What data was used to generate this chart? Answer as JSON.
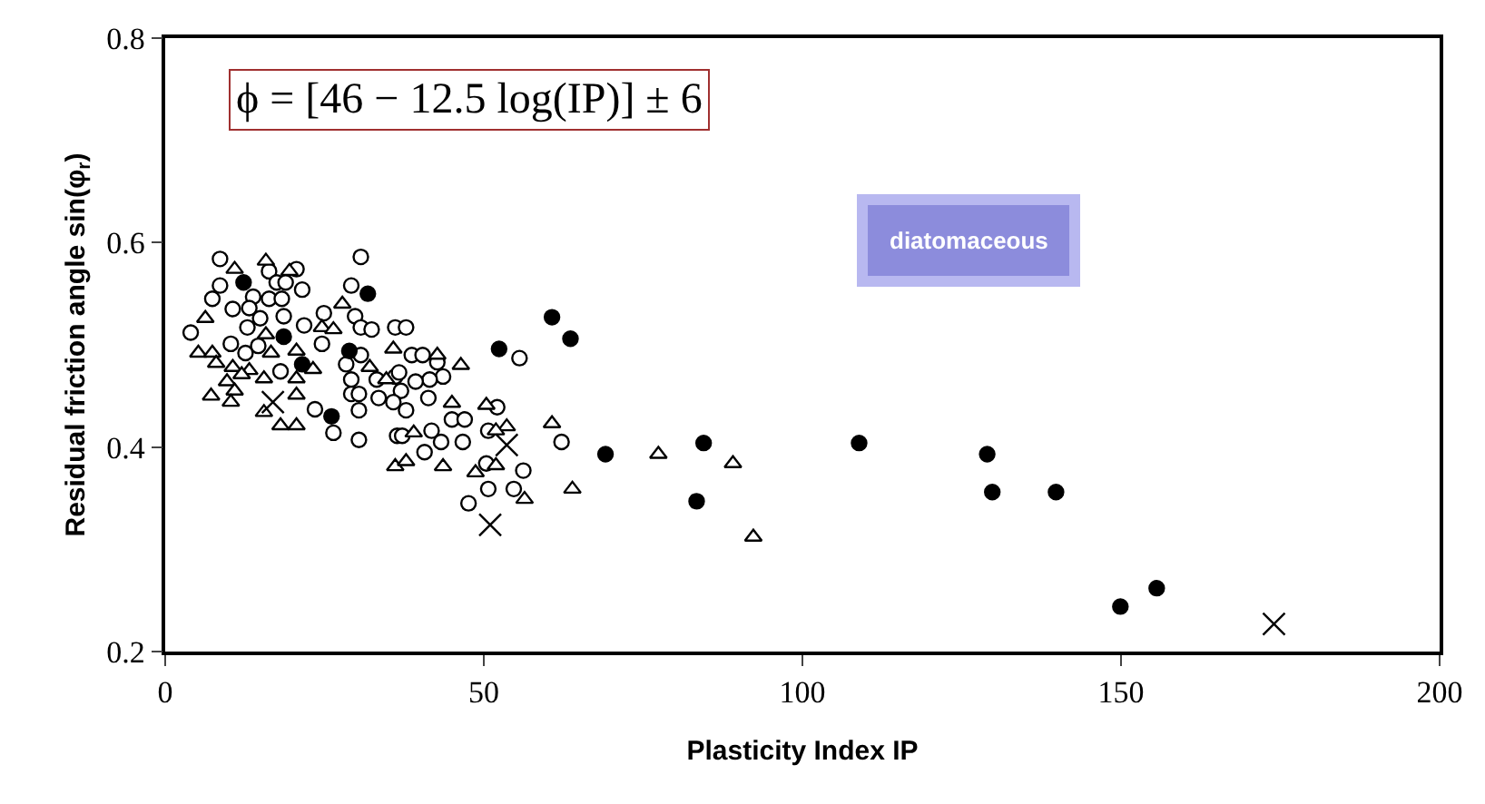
{
  "chart_data": {
    "type": "scatter",
    "xlabel": "Plasticity Index IP",
    "ylabel": "Residual friction angle sin(φ$_{r}$)",
    "annotations": [
      "ϕ = [46 − 12.5 log(IP)] ± 6",
      "diatomaceous"
    ],
    "xlim": [
      0,
      200
    ],
    "xticks": [
      0,
      50,
      100,
      150,
      200
    ],
    "ylim": [
      0.2,
      0.8
    ],
    "yticks": [
      0.2,
      0.4,
      0.6,
      0.8
    ],
    "series": [
      {
        "color": "#ffffff",
        "marker": "circle",
        "x": [
          8.6,
          30.7,
          20.6,
          16.3,
          8.6,
          17.5,
          18.9,
          21.5,
          7.4,
          13.8,
          16.3,
          18.3,
          10.6,
          13.2,
          18.6,
          14.9,
          4.0,
          12.9,
          21.8,
          29.2,
          24.9,
          29.8,
          30.7,
          32.4,
          24.6,
          10.3,
          14.6,
          12.6,
          18.1,
          28.4,
          30.7,
          29.2,
          29.2,
          30.4,
          33.5,
          30.4,
          23.5,
          26.4,
          30.4,
          36.1,
          36.1,
          36.4,
          37.8,
          38.7,
          40.4,
          42.7,
          43.6,
          41.5,
          39.3,
          36.7,
          33.2,
          37.0,
          35.8,
          41.3,
          37.8,
          45.0,
          47.0,
          52.1,
          55.6,
          37.2,
          41.8,
          43.3,
          46.7,
          50.7,
          62.2,
          40.7,
          50.4,
          56.2,
          50.7,
          54.7,
          47.6
        ],
        "values": [
          0.584,
          0.586,
          0.574,
          0.572,
          0.558,
          0.561,
          0.561,
          0.554,
          0.545,
          0.547,
          0.545,
          0.545,
          0.535,
          0.536,
          0.528,
          0.526,
          0.512,
          0.517,
          0.519,
          0.558,
          0.531,
          0.528,
          0.517,
          0.515,
          0.501,
          0.501,
          0.499,
          0.492,
          0.474,
          0.481,
          0.49,
          0.466,
          0.452,
          0.452,
          0.448,
          0.436,
          0.437,
          0.414,
          0.407,
          0.469,
          0.517,
          0.411,
          0.517,
          0.49,
          0.49,
          0.483,
          0.469,
          0.466,
          0.464,
          0.473,
          0.466,
          0.455,
          0.444,
          0.448,
          0.436,
          0.427,
          0.427,
          0.439,
          0.487,
          0.411,
          0.416,
          0.405,
          0.405,
          0.416,
          0.405,
          0.395,
          0.384,
          0.377,
          0.359,
          0.359,
          0.345
        ]
      },
      {
        "color": "#ffffff",
        "marker": "triangle",
        "x": [
          10.9,
          15.8,
          19.5,
          27.8,
          6.3,
          5.2,
          7.4,
          15.8,
          20.6,
          16.6,
          8.0,
          10.6,
          13.2,
          15.5,
          9.7,
          20.6,
          23.2,
          12.0,
          7.2,
          10.9,
          10.3,
          20.6,
          15.5,
          18.1,
          20.6,
          24.6,
          26.4,
          32.1,
          34.7,
          35.8,
          36.1,
          42.7,
          46.4,
          45.0,
          50.4,
          60.7,
          39.0,
          53.6,
          51.9,
          37.8,
          43.6,
          48.7,
          51.9,
          56.4,
          63.9,
          77.4,
          89.1,
          92.3
        ],
        "values": [
          0.574,
          0.582,
          0.572,
          0.54,
          0.526,
          0.492,
          0.492,
          0.51,
          0.494,
          0.492,
          0.482,
          0.478,
          0.475,
          0.467,
          0.464,
          0.467,
          0.476,
          0.471,
          0.45,
          0.455,
          0.444,
          0.451,
          0.434,
          0.421,
          0.421,
          0.517,
          0.515,
          0.478,
          0.466,
          0.496,
          0.381,
          0.49,
          0.48,
          0.443,
          0.441,
          0.423,
          0.414,
          0.42,
          0.416,
          0.386,
          0.381,
          0.375,
          0.382,
          0.349,
          0.359,
          0.393,
          0.384,
          0.312
        ]
      },
      {
        "color": "#000000",
        "marker": "circle",
        "x": [
          12.3,
          18.6,
          21.5,
          26.1,
          28.9,
          31.8,
          52.4,
          60.7,
          63.6,
          69.1,
          84.5,
          83.4,
          108.9,
          129,
          129.8,
          139.8,
          149.9,
          155.6
        ],
        "values": [
          0.561,
          0.508,
          0.481,
          0.43,
          0.494,
          0.55,
          0.496,
          0.527,
          0.506,
          0.393,
          0.404,
          0.347,
          0.404,
          0.393,
          0.356,
          0.356,
          0.244,
          0.262
        ]
      },
      {
        "color": "#000000",
        "marker": "cross",
        "x": [
          16.9,
          53.6,
          51.0,
          174
        ],
        "values": [
          0.444,
          0.402,
          0.324,
          0.227
        ]
      }
    ]
  }
}
